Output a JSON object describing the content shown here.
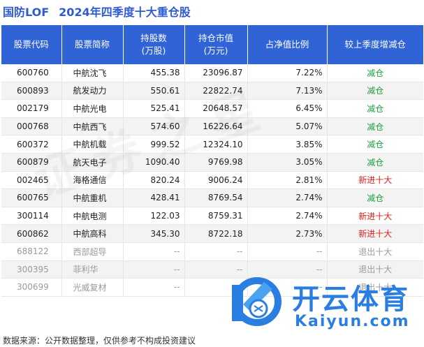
{
  "title": {
    "fund": "国防LOF",
    "subtitle": "2024年四季度十大重仓股"
  },
  "watermark_text": "证券之星",
  "table": {
    "headers": [
      {
        "line1": "股票代码",
        "line2": ""
      },
      {
        "line1": "股票简称",
        "line2": ""
      },
      {
        "line1": "持股数",
        "line2": "(万股)"
      },
      {
        "line1": "持仓市值",
        "line2": "(万元)"
      },
      {
        "line1": "占净值比例",
        "line2": ""
      },
      {
        "line1": "较上季度增减仓",
        "line2": ""
      }
    ],
    "rows": [
      {
        "code": "600760",
        "name": "中航沈飞",
        "shares": "455.38",
        "value": "23096.87",
        "ratio": "7.22%",
        "change": "减仓",
        "type": "decrease",
        "faded": false
      },
      {
        "code": "600893",
        "name": "航发动力",
        "shares": "550.61",
        "value": "22822.74",
        "ratio": "7.13%",
        "change": "减仓",
        "type": "decrease",
        "faded": false
      },
      {
        "code": "002179",
        "name": "中航光电",
        "shares": "525.41",
        "value": "20648.57",
        "ratio": "6.45%",
        "change": "减仓",
        "type": "decrease",
        "faded": false
      },
      {
        "code": "000768",
        "name": "中航西飞",
        "shares": "574.60",
        "value": "16226.64",
        "ratio": "5.07%",
        "change": "减仓",
        "type": "decrease",
        "faded": false
      },
      {
        "code": "600372",
        "name": "中航机载",
        "shares": "999.52",
        "value": "12324.10",
        "ratio": "3.85%",
        "change": "减仓",
        "type": "decrease",
        "faded": false
      },
      {
        "code": "600879",
        "name": "航天电子",
        "shares": "1090.40",
        "value": "9769.98",
        "ratio": "3.05%",
        "change": "减仓",
        "type": "decrease",
        "faded": false
      },
      {
        "code": "002465",
        "name": "海格通信",
        "shares": "820.24",
        "value": "9006.24",
        "ratio": "2.81%",
        "change": "新进十大",
        "type": "new",
        "faded": false
      },
      {
        "code": "600765",
        "name": "中航重机",
        "shares": "428.41",
        "value": "8769.54",
        "ratio": "2.74%",
        "change": "减仓",
        "type": "decrease",
        "faded": false
      },
      {
        "code": "300114",
        "name": "中航电测",
        "shares": "122.03",
        "value": "8759.31",
        "ratio": "2.74%",
        "change": "新进十大",
        "type": "new",
        "faded": false
      },
      {
        "code": "600862",
        "name": "中航高科",
        "shares": "345.30",
        "value": "8722.18",
        "ratio": "2.73%",
        "change": "新进十大",
        "type": "new",
        "faded": false
      },
      {
        "code": "688122",
        "name": "西部超导",
        "shares": "--",
        "value": "--",
        "ratio": "--",
        "change": "退出十大",
        "type": "exit",
        "faded": true
      },
      {
        "code": "300395",
        "name": "菲利华",
        "shares": "--",
        "value": "--",
        "ratio": "--",
        "change": "退出十大",
        "type": "exit",
        "faded": true
      },
      {
        "code": "300699",
        "name": "光威复材",
        "shares": "--",
        "value": "--",
        "ratio": "--",
        "change": "退出十大",
        "type": "exit",
        "faded": true
      }
    ]
  },
  "footer": "数据来源：公开数据整理，仅供参考不构成投资建议",
  "logo": {
    "cn": "开云体育",
    "en": "Kaiyun.com",
    "icon": "kaiyun-k-logo-icon"
  },
  "colors": {
    "title": "#2f5bd2",
    "header_bg": "#2f63d6",
    "decrease": "#1a9e3a",
    "new": "#e0201b",
    "exit": "#1a9e3a",
    "logo": "#2a7de1"
  }
}
